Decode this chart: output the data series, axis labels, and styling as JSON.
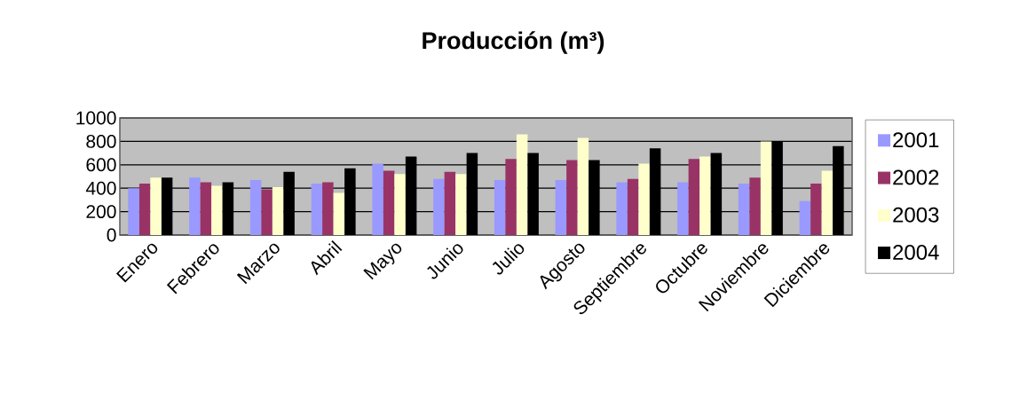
{
  "chart_data": {
    "type": "bar",
    "title": "Producción (m³)",
    "categories": [
      "Enero",
      "Febrero",
      "Marzo",
      "Abril",
      "Mayo",
      "Junio",
      "Julio",
      "Agosto",
      "Septiembre",
      "Octubre",
      "Noviembre",
      "Diciembre"
    ],
    "series": [
      {
        "name": "2001",
        "color": "#9999ff",
        "values": [
          400,
          490,
          470,
          440,
          610,
          480,
          470,
          470,
          450,
          450,
          440,
          290
        ]
      },
      {
        "name": "2002",
        "color": "#993366",
        "values": [
          440,
          450,
          390,
          450,
          550,
          540,
          650,
          640,
          480,
          650,
          490,
          440
        ]
      },
      {
        "name": "2003",
        "color": "#ffffcc",
        "values": [
          490,
          420,
          410,
          360,
          520,
          520,
          860,
          830,
          610,
          670,
          800,
          550
        ]
      },
      {
        "name": "2004",
        "color": "#000000",
        "values": [
          490,
          450,
          540,
          570,
          670,
          700,
          700,
          640,
          740,
          700,
          800,
          760
        ]
      }
    ],
    "ylim": [
      0,
      1000
    ],
    "yticks": [
      0,
      200,
      400,
      600,
      800,
      1000
    ],
    "grid": "y",
    "legend": "right"
  }
}
